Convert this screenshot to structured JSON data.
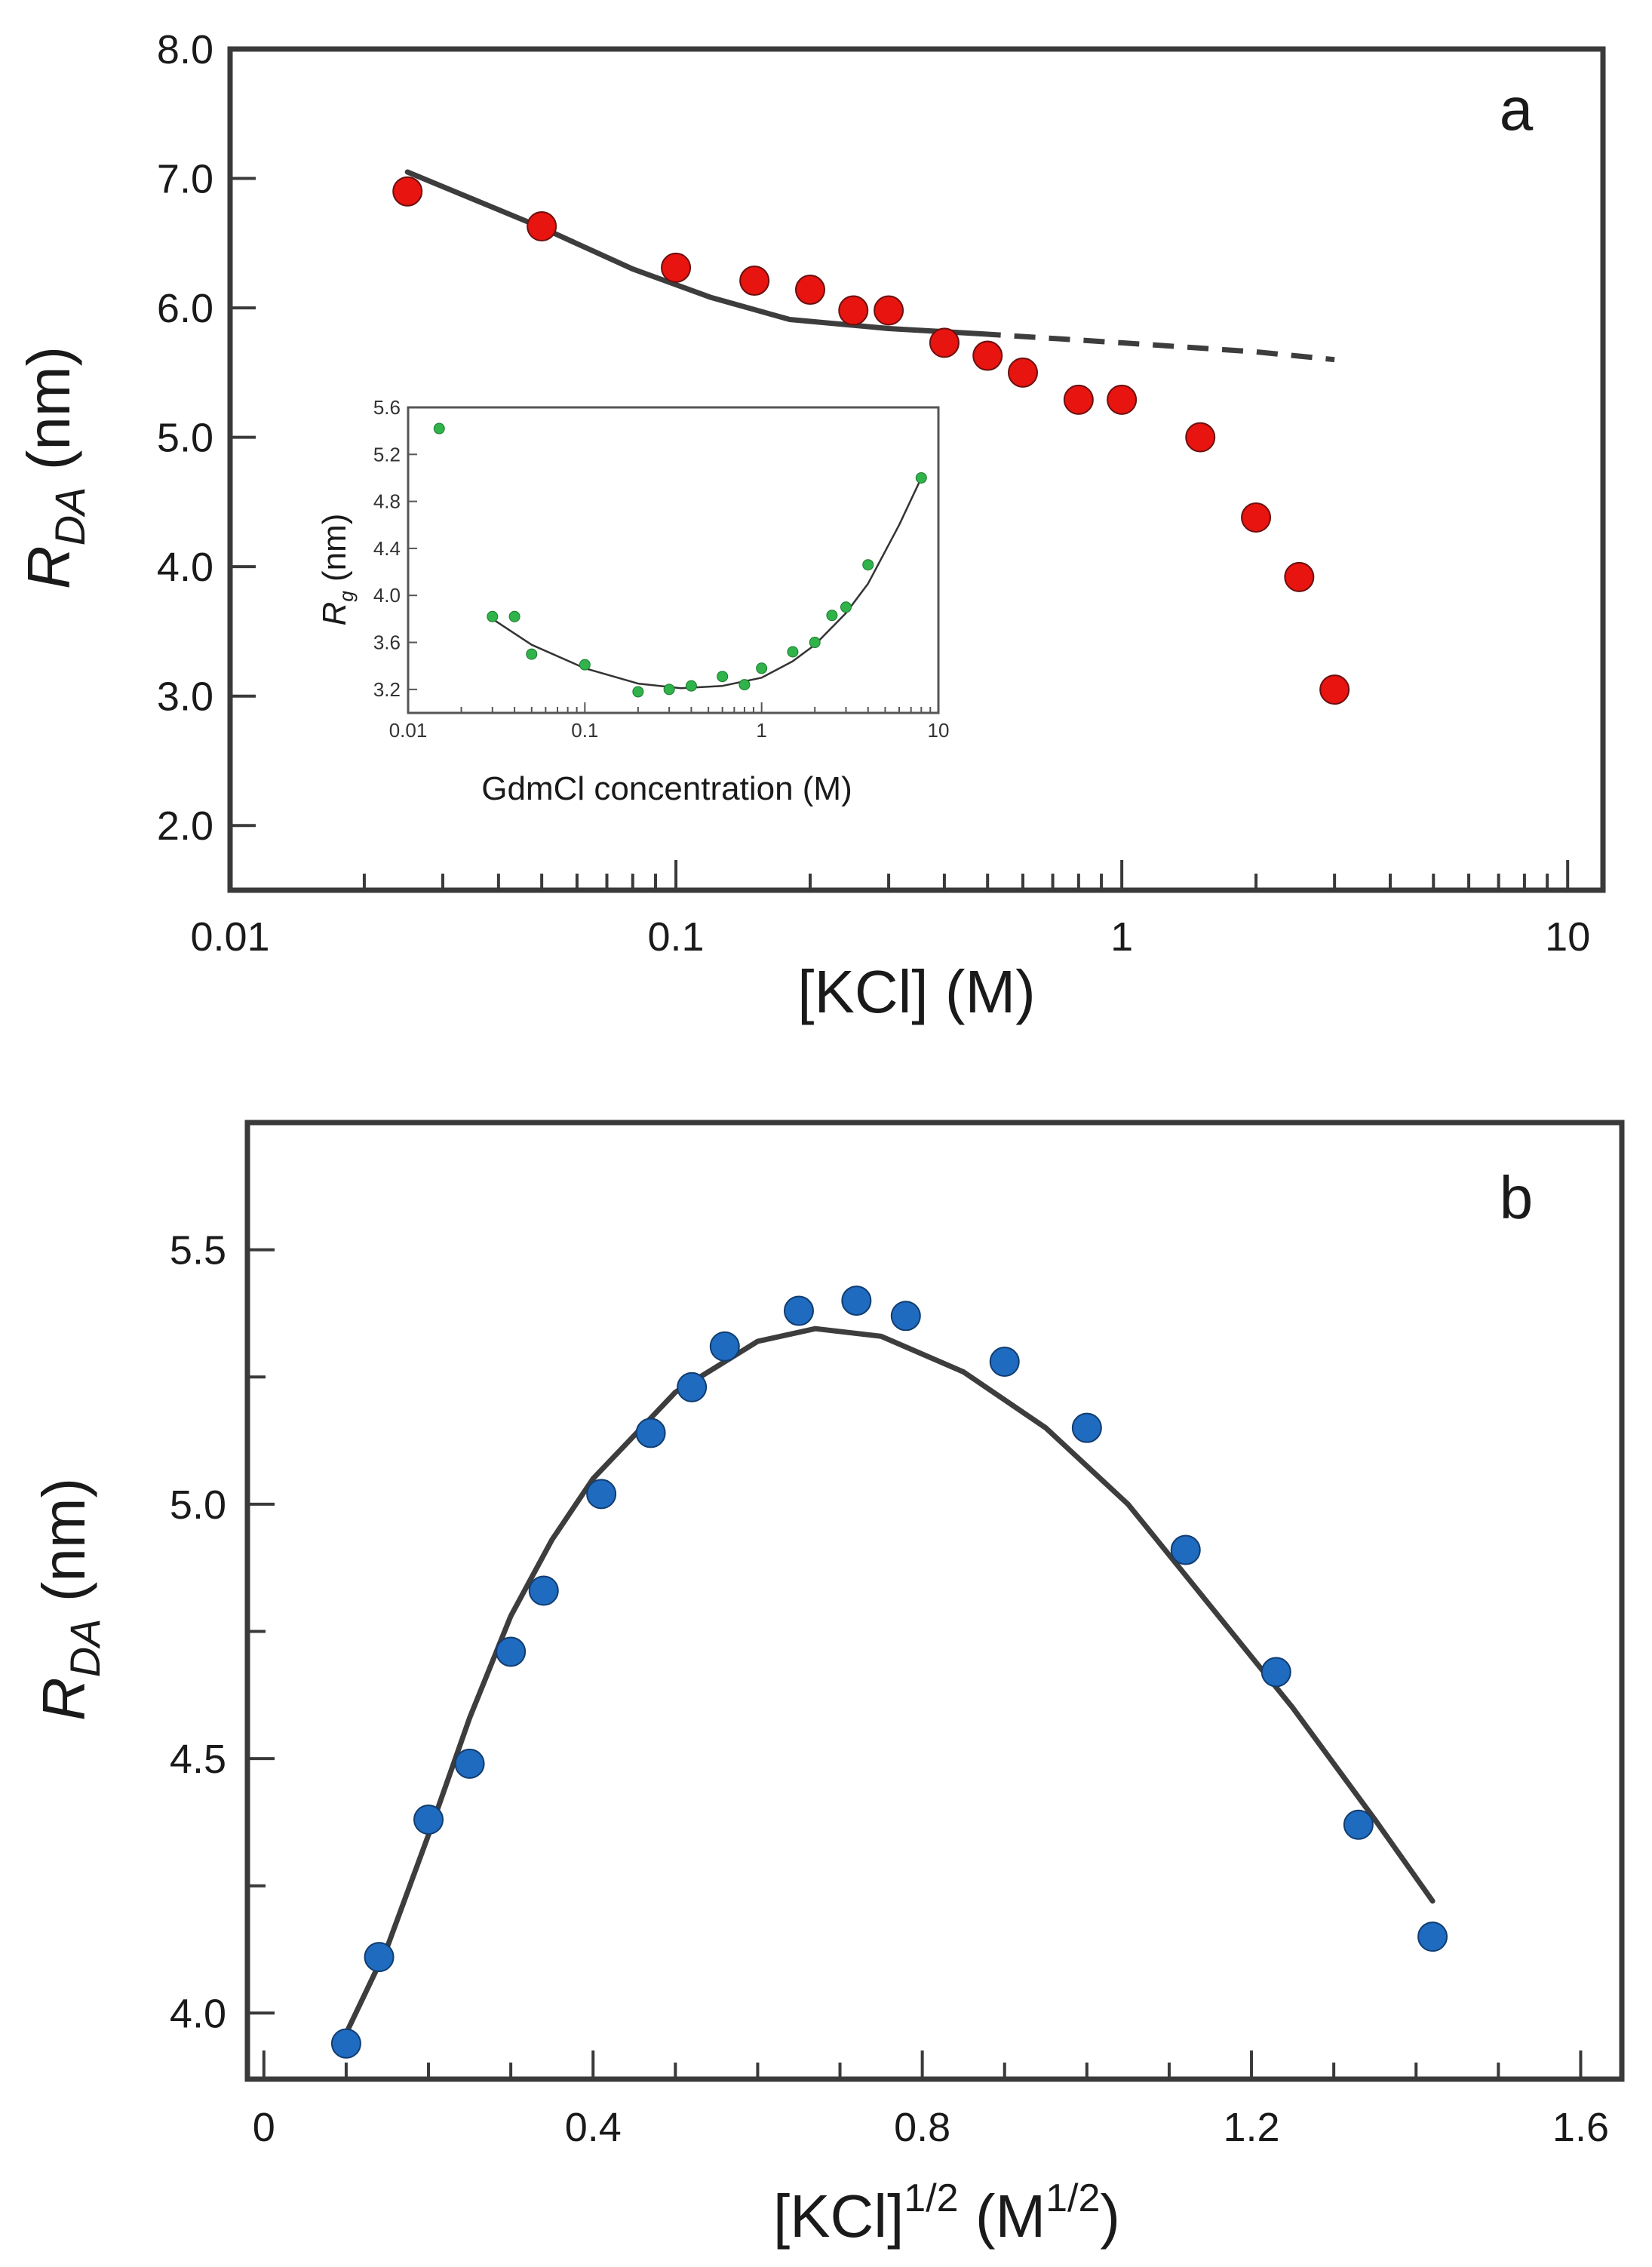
{
  "chart_data": [
    {
      "panel": "a",
      "type": "scatter",
      "xscale": "log",
      "xlim": [
        0.01,
        12
      ],
      "ylim": [
        1.5,
        8.0
      ],
      "x_ticks": [
        0.01,
        0.1,
        1,
        10
      ],
      "x_tick_labels": [
        "0.01",
        "0.1",
        "1",
        "10"
      ],
      "y_ticks": [
        2.0,
        3.0,
        4.0,
        5.0,
        6.0,
        7.0,
        8.0
      ],
      "y_tick_labels": [
        "2.0",
        "3.0",
        "4.0",
        "5.0",
        "6.0",
        "7.0",
        "8.0"
      ],
      "xlabel": "[KCl] (M)",
      "ylabel_main": "R",
      "ylabel_sub": "DA",
      "ylabel_rest": " (nm)",
      "color": "#e8140f",
      "points": [
        {
          "x": 0.025,
          "y": 6.9
        },
        {
          "x": 0.05,
          "y": 6.63
        },
        {
          "x": 0.1,
          "y": 6.31
        },
        {
          "x": 0.15,
          "y": 6.21
        },
        {
          "x": 0.2,
          "y": 6.14
        },
        {
          "x": 0.25,
          "y": 5.98
        },
        {
          "x": 0.3,
          "y": 5.98
        },
        {
          "x": 0.4,
          "y": 5.73
        },
        {
          "x": 0.5,
          "y": 5.63
        },
        {
          "x": 0.6,
          "y": 5.5
        },
        {
          "x": 0.8,
          "y": 5.29
        },
        {
          "x": 1.0,
          "y": 5.29
        },
        {
          "x": 1.5,
          "y": 5.0
        },
        {
          "x": 2.0,
          "y": 4.38
        },
        {
          "x": 2.5,
          "y": 3.92
        },
        {
          "x": 3.0,
          "y": 3.05
        }
      ],
      "fit_solid": [
        {
          "x": 0.025,
          "y": 7.05
        },
        {
          "x": 0.05,
          "y": 6.62
        },
        {
          "x": 0.08,
          "y": 6.3
        },
        {
          "x": 0.12,
          "y": 6.08
        },
        {
          "x": 0.18,
          "y": 5.91
        },
        {
          "x": 0.3,
          "y": 5.84
        },
        {
          "x": 0.48,
          "y": 5.8
        }
      ],
      "fit_dashed": [
        {
          "x": 0.48,
          "y": 5.8
        },
        {
          "x": 1.0,
          "y": 5.73
        },
        {
          "x": 2.0,
          "y": 5.66
        },
        {
          "x": 3.0,
          "y": 5.6
        }
      ],
      "annotation": "a",
      "inset": {
        "type": "scatter",
        "xscale": "log",
        "xlim": [
          0.01,
          10
        ],
        "ylim": [
          3.0,
          5.6
        ],
        "x_ticks": [
          0.01,
          0.1,
          1,
          10
        ],
        "x_tick_labels": [
          "0.01",
          "0.1",
          "1",
          "10"
        ],
        "y_ticks": [
          3.2,
          3.6,
          4.0,
          4.4,
          4.8,
          5.2,
          5.6
        ],
        "y_tick_labels": [
          "3.2",
          "3.6",
          "4.0",
          "4.4",
          "4.8",
          "5.2",
          "5.6"
        ],
        "xlabel": "GdmCl concentration (M)",
        "ylabel_main": "R",
        "ylabel_sub": "g",
        "ylabel_rest": " (nm)",
        "color": "#2fb34a",
        "points": [
          {
            "x": 0.015,
            "y": 5.42
          },
          {
            "x": 0.03,
            "y": 3.82
          },
          {
            "x": 0.04,
            "y": 3.82
          },
          {
            "x": 0.05,
            "y": 3.5
          },
          {
            "x": 0.1,
            "y": 3.41
          },
          {
            "x": 0.2,
            "y": 3.18
          },
          {
            "x": 0.3,
            "y": 3.2
          },
          {
            "x": 0.4,
            "y": 3.23
          },
          {
            "x": 0.6,
            "y": 3.31
          },
          {
            "x": 0.8,
            "y": 3.24
          },
          {
            "x": 1.0,
            "y": 3.38
          },
          {
            "x": 1.5,
            "y": 3.52
          },
          {
            "x": 2.0,
            "y": 3.6
          },
          {
            "x": 2.5,
            "y": 3.83
          },
          {
            "x": 3.0,
            "y": 3.9
          },
          {
            "x": 4.0,
            "y": 4.26
          },
          {
            "x": 8.0,
            "y": 5.0
          }
        ],
        "fit": [
          {
            "x": 0.03,
            "y": 3.8
          },
          {
            "x": 0.05,
            "y": 3.58
          },
          {
            "x": 0.1,
            "y": 3.38
          },
          {
            "x": 0.2,
            "y": 3.25
          },
          {
            "x": 0.35,
            "y": 3.21
          },
          {
            "x": 0.6,
            "y": 3.23
          },
          {
            "x": 1.0,
            "y": 3.3
          },
          {
            "x": 1.5,
            "y": 3.44
          },
          {
            "x": 2.0,
            "y": 3.58
          },
          {
            "x": 3.0,
            "y": 3.85
          },
          {
            "x": 4.0,
            "y": 4.1
          },
          {
            "x": 6.0,
            "y": 4.6
          },
          {
            "x": 8.0,
            "y": 5.0
          }
        ]
      }
    },
    {
      "panel": "b",
      "type": "scatter",
      "xlim": [
        -0.02,
        1.65
      ],
      "ylim": [
        3.87,
        5.75
      ],
      "x_ticks": [
        0,
        0.4,
        0.8,
        1.2,
        1.6
      ],
      "x_tick_labels": [
        "0",
        "0.4",
        "0.8",
        "1.2",
        "1.6"
      ],
      "y_ticks": [
        4.0,
        4.5,
        5.0,
        5.5
      ],
      "y_tick_labels": [
        "4.0",
        "4.5",
        "5.0",
        "5.5"
      ],
      "xlabel_base": "[KCl]",
      "xlabel_sup": "1/2",
      "xlabel_mid": " (M",
      "xlabel_sup2": "1/2",
      "xlabel_end": ")",
      "ylabel_main": "R",
      "ylabel_sub": "DA",
      "ylabel_rest": " (nm)",
      "color": "#1f6bbf",
      "points": [
        {
          "x": 0.1,
          "y": 3.94
        },
        {
          "x": 0.14,
          "y": 4.11
        },
        {
          "x": 0.2,
          "y": 4.38
        },
        {
          "x": 0.25,
          "y": 4.49
        },
        {
          "x": 0.3,
          "y": 4.71
        },
        {
          "x": 0.34,
          "y": 4.83
        },
        {
          "x": 0.41,
          "y": 5.02
        },
        {
          "x": 0.47,
          "y": 5.14
        },
        {
          "x": 0.52,
          "y": 5.23
        },
        {
          "x": 0.56,
          "y": 5.31
        },
        {
          "x": 0.65,
          "y": 5.38
        },
        {
          "x": 0.72,
          "y": 5.4
        },
        {
          "x": 0.78,
          "y": 5.37
        },
        {
          "x": 0.9,
          "y": 5.28
        },
        {
          "x": 1.0,
          "y": 5.15
        },
        {
          "x": 1.12,
          "y": 4.91
        },
        {
          "x": 1.23,
          "y": 4.67
        },
        {
          "x": 1.33,
          "y": 4.37
        },
        {
          "x": 1.42,
          "y": 4.15
        }
      ],
      "fit": [
        {
          "x": 0.1,
          "y": 3.96
        },
        {
          "x": 0.15,
          "y": 4.13
        },
        {
          "x": 0.2,
          "y": 4.35
        },
        {
          "x": 0.25,
          "y": 4.58
        },
        {
          "x": 0.3,
          "y": 4.78
        },
        {
          "x": 0.35,
          "y": 4.93
        },
        {
          "x": 0.4,
          "y": 5.05
        },
        {
          "x": 0.5,
          "y": 5.22
        },
        {
          "x": 0.6,
          "y": 5.32
        },
        {
          "x": 0.67,
          "y": 5.345
        },
        {
          "x": 0.75,
          "y": 5.33
        },
        {
          "x": 0.85,
          "y": 5.26
        },
        {
          "x": 0.95,
          "y": 5.15
        },
        {
          "x": 1.05,
          "y": 5.0
        },
        {
          "x": 1.15,
          "y": 4.8
        },
        {
          "x": 1.25,
          "y": 4.6
        },
        {
          "x": 1.35,
          "y": 4.38
        },
        {
          "x": 1.42,
          "y": 4.22
        }
      ],
      "annotation": "b"
    }
  ]
}
